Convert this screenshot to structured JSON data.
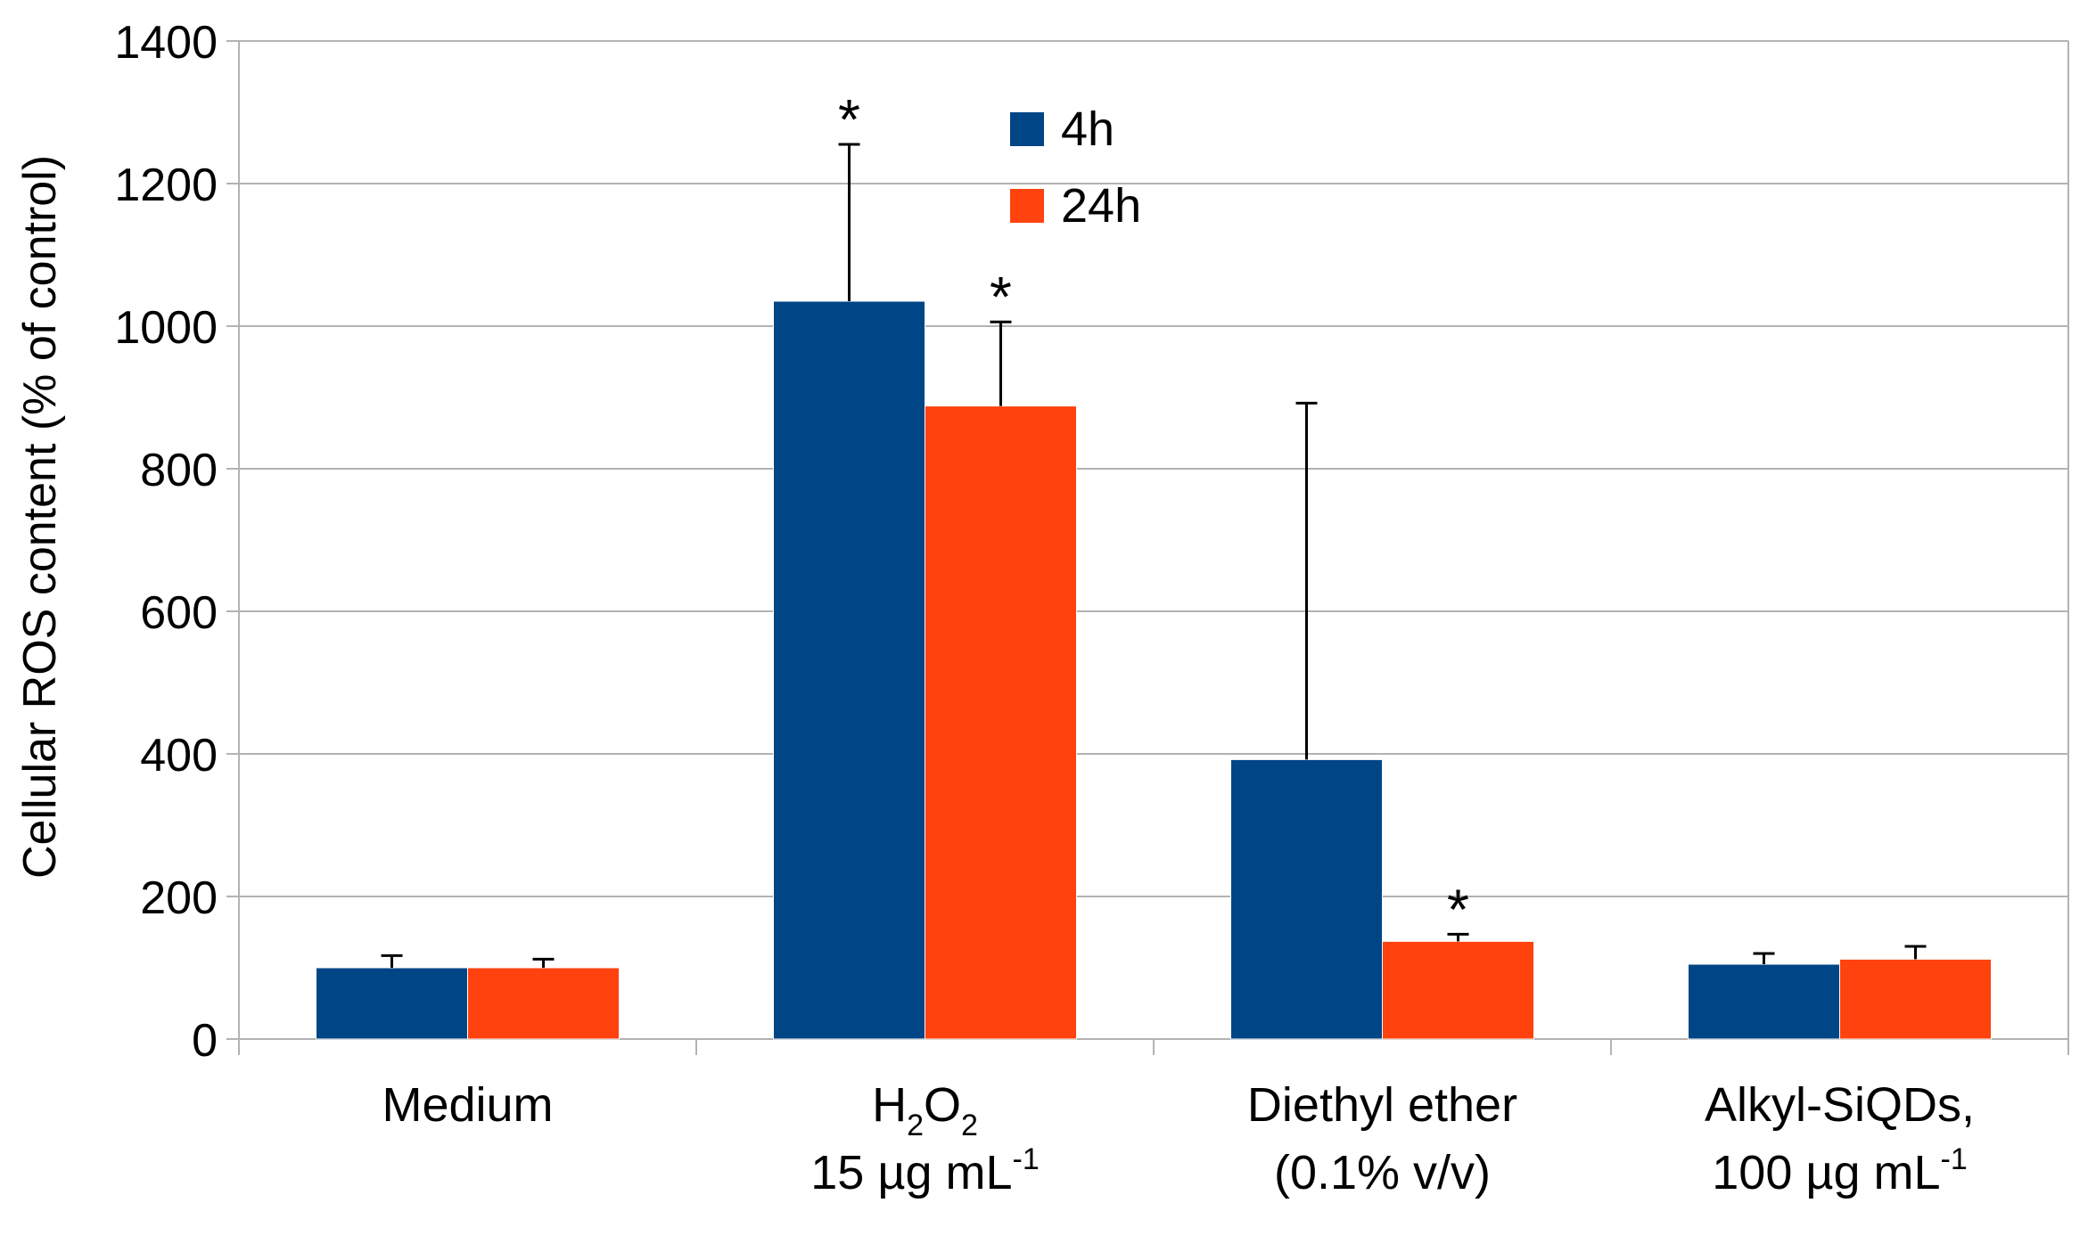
{
  "chart_data": {
    "type": "bar",
    "title": "",
    "xlabel": "",
    "ylabel": "Cellular ROS content (% of control)",
    "ylim": [
      0,
      1400
    ],
    "yticks": [
      0,
      200,
      400,
      600,
      800,
      1000,
      1200,
      1400
    ],
    "ytick_labels": [
      "0",
      "200",
      "400",
      "600",
      "800",
      "1000",
      "1200",
      "1400"
    ],
    "grid": true,
    "legend_position": "top-center",
    "categories": [
      {
        "lines": [
          {
            "text": "Medium"
          }
        ]
      },
      {
        "lines": [
          {
            "parts": [
              {
                "t": "H",
                "s": ""
              },
              {
                "t": "2",
                "s": "sub"
              },
              {
                "t": "O",
                "s": ""
              },
              {
                "t": "2",
                "s": "sub"
              }
            ]
          },
          {
            "parts": [
              {
                "t": "15 µg mL",
                "s": ""
              },
              {
                "t": "-1",
                "s": "sup"
              }
            ]
          }
        ]
      },
      {
        "lines": [
          {
            "text": "Diethyl ether"
          },
          {
            "text": "(0.1% v/v)"
          }
        ]
      },
      {
        "lines": [
          {
            "text": "Alkyl-SiQDs,"
          },
          {
            "parts": [
              {
                "t": "100 µg mL",
                "s": ""
              },
              {
                "t": "-1",
                "s": "sup"
              }
            ]
          }
        ]
      }
    ],
    "series": [
      {
        "name": "4h",
        "color": "#004586",
        "values": [
          100,
          1035,
          392,
          105
        ],
        "errors": [
          17,
          220,
          500,
          15
        ],
        "significant": [
          false,
          true,
          false,
          false
        ]
      },
      {
        "name": "24h",
        "color": "#ff420e",
        "values": [
          100,
          888,
          137,
          112
        ],
        "errors": [
          12,
          118,
          10,
          18
        ],
        "significant": [
          false,
          true,
          true,
          false
        ]
      }
    ],
    "significance_marker": "*"
  }
}
